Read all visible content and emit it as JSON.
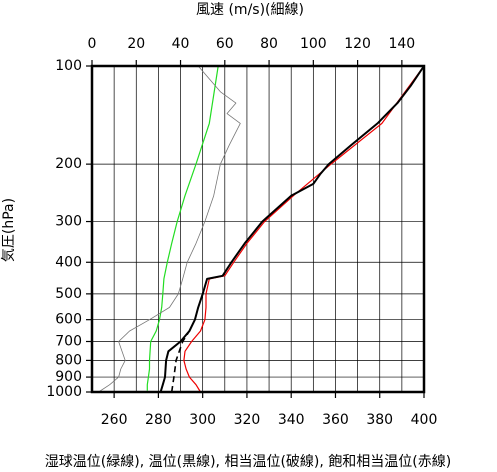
{
  "chart_data": {
    "type": "profile",
    "x2_label": "風速 (m/s)(細線)",
    "y_label": "気圧(hPa)",
    "x_label": "湿球温位(緑線), 温位(黒線), 相当温位(破線), 飽和相当温位(赤線)",
    "xlim": [
      250,
      400
    ],
    "xticks": [
      260,
      280,
      300,
      320,
      340,
      360,
      380,
      400
    ],
    "x2lim": [
      0,
      150
    ],
    "x2ticks": [
      0,
      20,
      40,
      60,
      80,
      100,
      120,
      140
    ],
    "ylim": [
      1000,
      100
    ],
    "y_log": true,
    "yticks": [
      100,
      200,
      300,
      400,
      500,
      600,
      700,
      800,
      900,
      1000
    ],
    "xgrid": [
      260,
      270,
      280,
      290,
      300,
      310,
      320,
      330,
      340,
      350,
      360,
      370,
      380,
      390
    ],
    "series": [
      {
        "color": "#22dd22",
        "width": 1.2,
        "dashed": false,
        "pressure": [
          990,
          950,
          900,
          850,
          800,
          700,
          650,
          600,
          550,
          500,
          450,
          400,
          350,
          300,
          250,
          200,
          150,
          100
        ],
        "values": [
          275,
          275,
          275.5,
          276,
          276,
          276.5,
          279,
          280.5,
          281.5,
          282,
          282.5,
          284,
          286,
          288.5,
          292,
          297,
          303,
          307
        ]
      },
      {
        "color": "#ee0000",
        "width": 1.2,
        "dashed": false,
        "pressure": [
          1000,
          950,
          900,
          850,
          800,
          750,
          700,
          650,
          600,
          550,
          500,
          450,
          440,
          400,
          350,
          300,
          250,
          200,
          150,
          100
        ],
        "values": [
          299,
          297,
          294,
          292.5,
          291.5,
          292,
          295,
          299,
          301,
          301.5,
          301.5,
          303,
          310,
          314,
          320,
          328,
          341,
          358,
          381,
          400
        ]
      },
      {
        "color": "#000000",
        "width": 2,
        "dashed": false,
        "pressure": [
          1000,
          950,
          900,
          800,
          750,
          700,
          650,
          600,
          550,
          500,
          450,
          440,
          400,
          350,
          300,
          250,
          230,
          215,
          200,
          175,
          150,
          130,
          115,
          100
        ],
        "values": [
          281,
          282,
          283,
          283.5,
          284.5,
          290,
          294,
          296.5,
          298,
          300,
          302,
          309,
          313,
          319,
          327,
          340,
          350,
          353,
          357,
          367,
          379,
          388,
          394,
          400
        ]
      },
      {
        "color": "#000000",
        "width": 1.6,
        "dashed": true,
        "pressure": [
          1000,
          900,
          800,
          700,
          650
        ],
        "values": [
          286,
          287,
          288,
          291,
          294
        ]
      },
      {
        "color": "#777777",
        "width": 0.8,
        "dashed": false,
        "axis": "x2",
        "pressure": [
          1000,
          950,
          900,
          850,
          800,
          700,
          650,
          600,
          550,
          500,
          450,
          400,
          350,
          300,
          250,
          200,
          175,
          150,
          140,
          130,
          120,
          100
        ],
        "values": [
          3,
          8,
          12,
          13,
          15,
          12,
          17,
          26,
          35,
          39,
          41,
          43,
          47,
          51,
          55,
          58,
          62,
          67,
          61,
          65,
          58,
          48
        ]
      }
    ]
  }
}
